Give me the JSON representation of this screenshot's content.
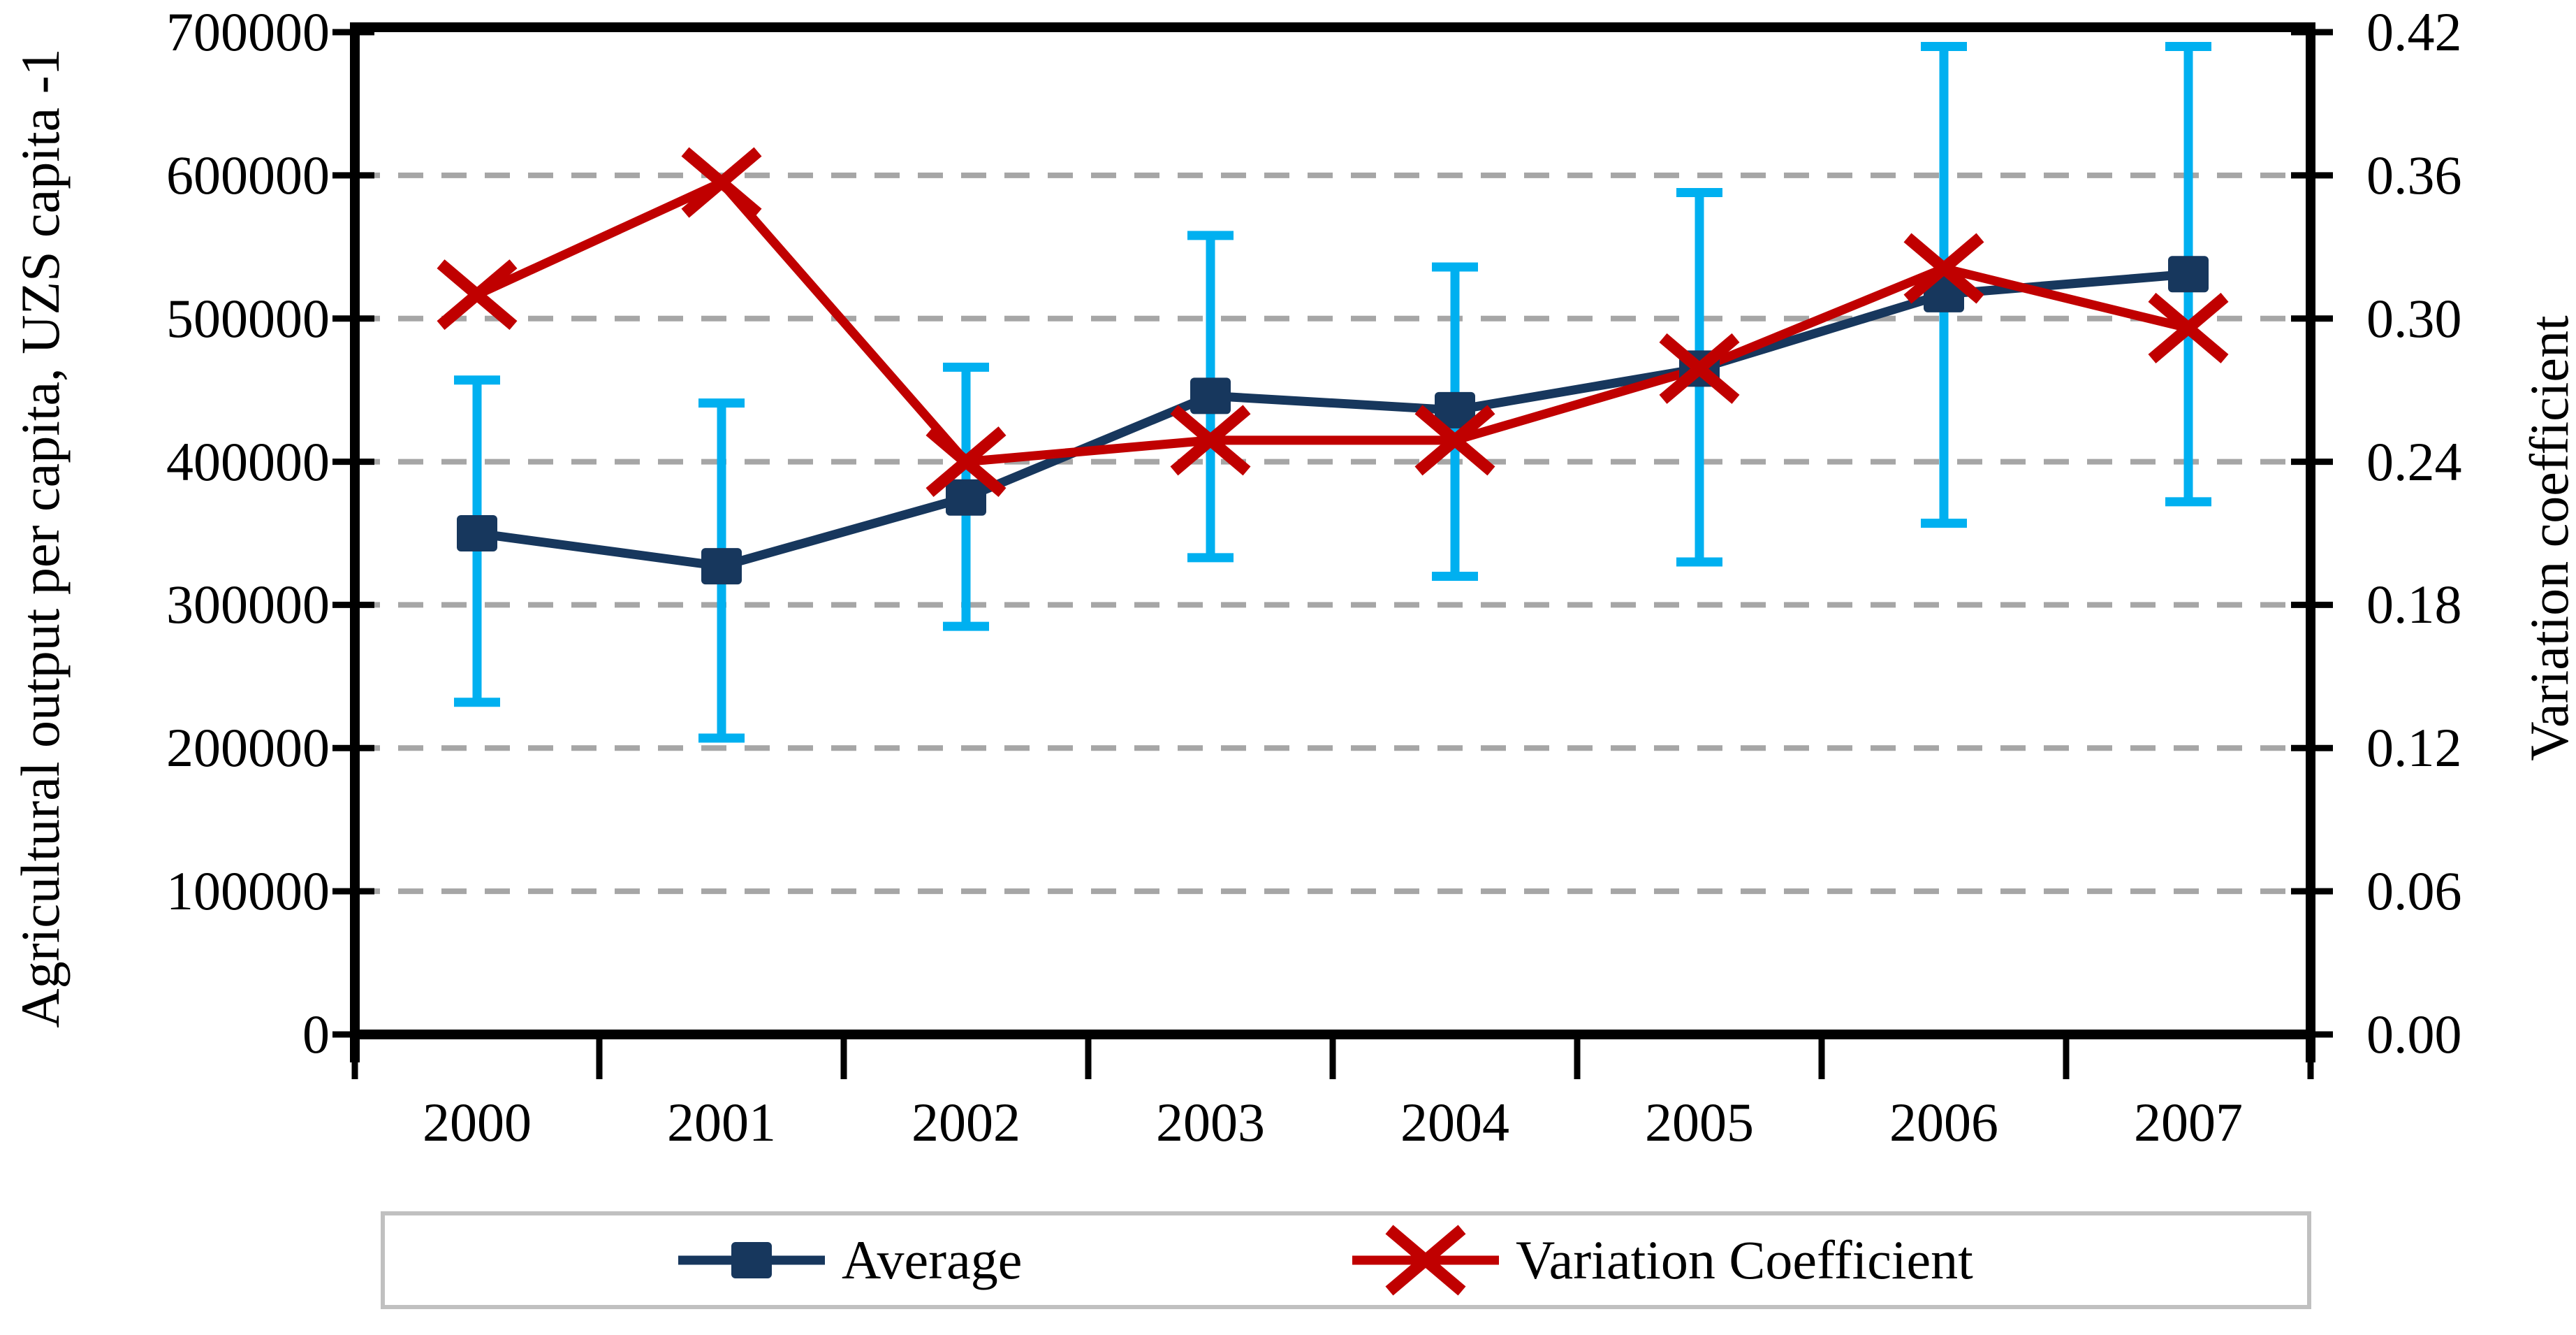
{
  "chart_data": {
    "type": "line",
    "title": "",
    "categories": [
      "2000",
      "2001",
      "2002",
      "2003",
      "2004",
      "2005",
      "2006",
      "2007"
    ],
    "left_axis": {
      "label": "Agricultural output per capita, UZS capita -1",
      "min": 0,
      "max": 700000,
      "tick_values": [
        0,
        100000,
        200000,
        300000,
        400000,
        500000,
        600000,
        700000
      ],
      "tick_labels": [
        "0",
        "100000",
        "200000",
        "300000",
        "400000",
        "500000",
        "600000",
        "700000"
      ]
    },
    "right_axis": {
      "label": "Variation coefficient",
      "min": 0,
      "max": 0.42,
      "tick_values": [
        0,
        0.06,
        0.12,
        0.18,
        0.24,
        0.3,
        0.36,
        0.42
      ],
      "tick_labels": [
        "0.00",
        "0.06",
        "0.12",
        "0.18",
        "0.24",
        "0.30",
        "0.36",
        "0.42"
      ]
    },
    "series": [
      {
        "name": "Average",
        "axis": "left",
        "marker": "square",
        "color": "#17375D",
        "values": [
          350000,
          327000,
          375000,
          446000,
          436000,
          465000,
          517000,
          531000
        ],
        "error_bars": {
          "color": "#00B0F0",
          "upper": [
            457000,
            441000,
            466000,
            558000,
            536000,
            588000,
            690000,
            690000
          ],
          "lower": [
            232000,
            207000,
            285000,
            333000,
            320000,
            330000,
            357000,
            372000
          ]
        }
      },
      {
        "name": "Variation Coefficient",
        "axis": "right",
        "marker": "x",
        "color": "#C00000",
        "values": [
          0.31,
          0.357,
          0.24,
          0.249,
          0.249,
          0.279,
          0.321,
          0.296
        ]
      }
    ],
    "grid": {
      "color": "#A6A6A6",
      "style": "dashed",
      "values": [
        100000,
        200000,
        300000,
        400000,
        500000,
        600000
      ]
    },
    "legend": {
      "position": "bottom",
      "border_color": "#C0C0C0"
    },
    "axis_color": "#000000",
    "background": "#FFFFFF"
  }
}
